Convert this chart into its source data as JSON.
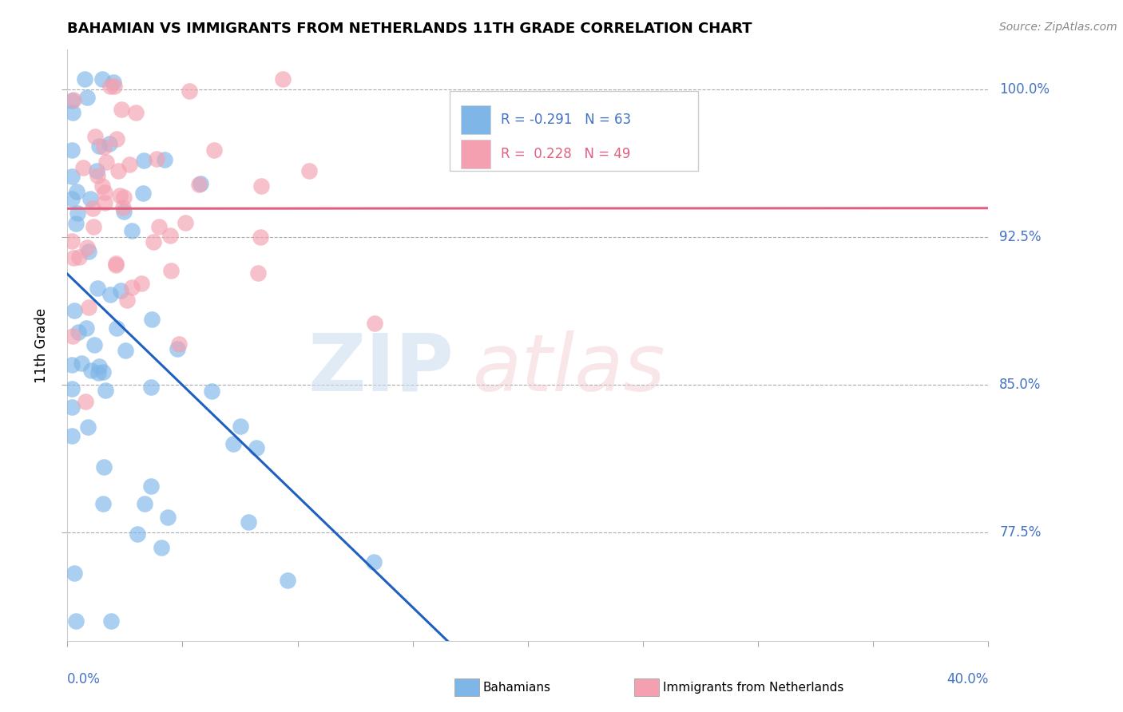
{
  "title": "BAHAMIAN VS IMMIGRANTS FROM NETHERLANDS 11TH GRADE CORRELATION CHART",
  "source_text": "Source: ZipAtlas.com",
  "ylabel": "11th Grade",
  "xlim": [
    0.0,
    40.0
  ],
  "ylim": [
    72.0,
    102.0
  ],
  "yticks": [
    77.5,
    85.0,
    92.5,
    100.0
  ],
  "ytick_labels": [
    "77.5%",
    "85.0%",
    "92.5%",
    "100.0%"
  ],
  "blue_R": -0.291,
  "blue_N": 63,
  "pink_R": 0.228,
  "pink_N": 49,
  "blue_color": "#7EB6E8",
  "pink_color": "#F4A0B0",
  "blue_line_color": "#2060C0",
  "pink_line_color": "#E06080",
  "blue_seed": 12,
  "pink_seed": 7
}
